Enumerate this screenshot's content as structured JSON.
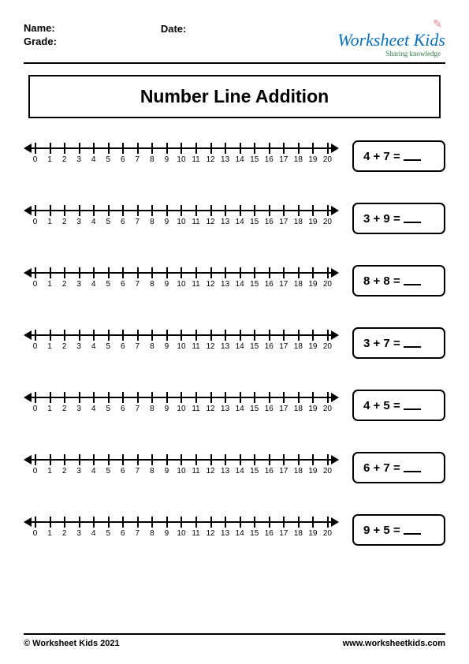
{
  "header": {
    "name_label": "Name:",
    "grade_label": "Grade:",
    "date_label": "Date:",
    "logo_main": "Worksheet Kids",
    "logo_sub": "Sharing knowledge"
  },
  "title": "Number Line Addition",
  "numberline": {
    "min": 0,
    "max": 20,
    "ticks": [
      0,
      1,
      2,
      3,
      4,
      5,
      6,
      7,
      8,
      9,
      10,
      11,
      12,
      13,
      14,
      15,
      16,
      17,
      18,
      19,
      20
    ]
  },
  "problems": [
    {
      "a": 4,
      "b": 7
    },
    {
      "a": 3,
      "b": 9
    },
    {
      "a": 8,
      "b": 8
    },
    {
      "a": 3,
      "b": 7
    },
    {
      "a": 4,
      "b": 5
    },
    {
      "a": 6,
      "b": 7
    },
    {
      "a": 9,
      "b": 5
    }
  ],
  "footer": {
    "copyright": "© Worksheet Kids 2021",
    "url": "www.worksheetkids.com"
  },
  "styles": {
    "page_bg": "#ffffff",
    "text_color": "#000000",
    "logo_blue": "#0a70c0",
    "logo_green": "#2d7c3f",
    "border_radius": 7,
    "title_fontsize": 23,
    "equation_fontsize": 15,
    "tick_fontsize": 10
  }
}
